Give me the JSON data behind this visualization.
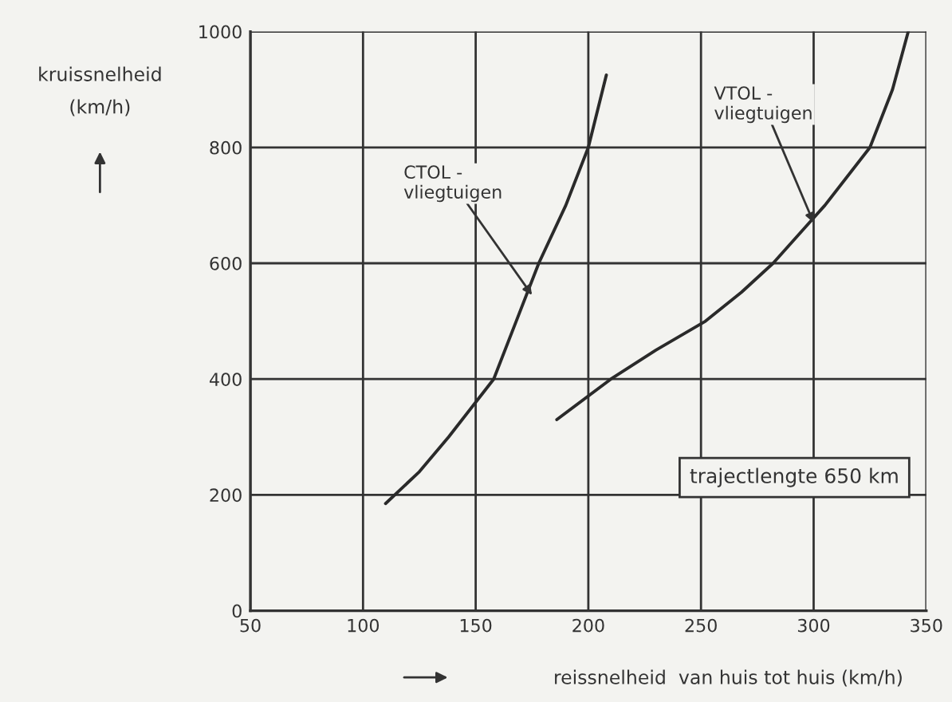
{
  "chart_data": {
    "type": "line",
    "xlabel": "reissnelheid  van huis tot huis (km/h)",
    "ylabel": "kruissnelheid\n(km/h)",
    "xlim": [
      50,
      350
    ],
    "xticks": [
      50,
      100,
      150,
      200,
      250,
      300,
      350
    ],
    "ylim": [
      0,
      1000
    ],
    "yticks": [
      0,
      200,
      400,
      600,
      800,
      1000
    ],
    "grid": true,
    "marker": "none",
    "line_style": "solid",
    "series": [
      {
        "color": "#2a2a2a",
        "x": [
          110,
          125,
          138,
          150,
          158,
          168,
          178,
          190,
          200,
          208
        ],
        "values": [
          185,
          240,
          300,
          360,
          400,
          500,
          600,
          700,
          800,
          925
        ]
      },
      {
        "color": "#2a2a2a",
        "x": [
          186,
          210,
          230,
          252,
          268,
          282,
          305,
          325,
          335,
          342
        ],
        "values": [
          330,
          400,
          450,
          500,
          550,
          600,
          700,
          800,
          900,
          1000
        ]
      }
    ],
    "annotations": [
      {
        "text": "CTOL -\nvliegtuigen",
        "x": 175,
        "y": 545
      },
      {
        "text": "VTOL -\nvliegtuigen",
        "x": 300,
        "y": 670
      },
      "trajectlengte 650 km"
    ]
  }
}
